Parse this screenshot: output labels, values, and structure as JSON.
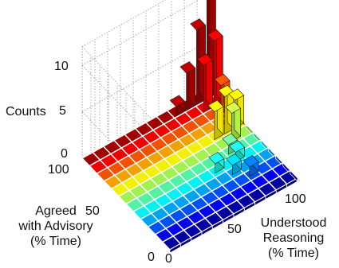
{
  "chart_data": {
    "type": "bar3d",
    "zlabel": "Counts",
    "xlabel": [
      "Understood",
      "Reasoning",
      "(% Time)"
    ],
    "ylabel": [
      "Agreed",
      "with Advisory",
      "(% Time)"
    ],
    "zticks": [
      "0",
      "5",
      "10"
    ],
    "xticks": [
      "0",
      "50",
      "100"
    ],
    "yticks": [
      "0",
      "50",
      "100"
    ],
    "zlim": [
      0,
      12
    ],
    "xlim": [
      0,
      100
    ],
    "ylim": [
      0,
      100
    ],
    "grid": true,
    "bars": [
      {
        "understood": 96,
        "agreed": 96,
        "count": 13
      },
      {
        "understood": 88,
        "agreed": 96,
        "count": 8
      },
      {
        "understood": 96,
        "agreed": 88,
        "count": 7
      },
      {
        "understood": 88,
        "agreed": 88,
        "count": 5
      },
      {
        "understood": 80,
        "agreed": 96,
        "count": 4
      },
      {
        "understood": 72,
        "agreed": 96,
        "count": 1
      },
      {
        "understood": 96,
        "agreed": 80,
        "count": 3
      },
      {
        "understood": 96,
        "agreed": 64,
        "count": 3
      },
      {
        "understood": 88,
        "agreed": 64,
        "count": 4
      },
      {
        "understood": 80,
        "agreed": 64,
        "count": 3
      },
      {
        "understood": 88,
        "agreed": 56,
        "count": 3
      },
      {
        "understood": 80,
        "agreed": 48,
        "count": 1
      },
      {
        "understood": 80,
        "agreed": 40,
        "count": 1
      },
      {
        "understood": 64,
        "agreed": 40,
        "count": 1
      },
      {
        "understood": 72,
        "agreed": 32,
        "count": 1
      },
      {
        "understood": 80,
        "agreed": 24,
        "count": 1
      }
    ]
  }
}
